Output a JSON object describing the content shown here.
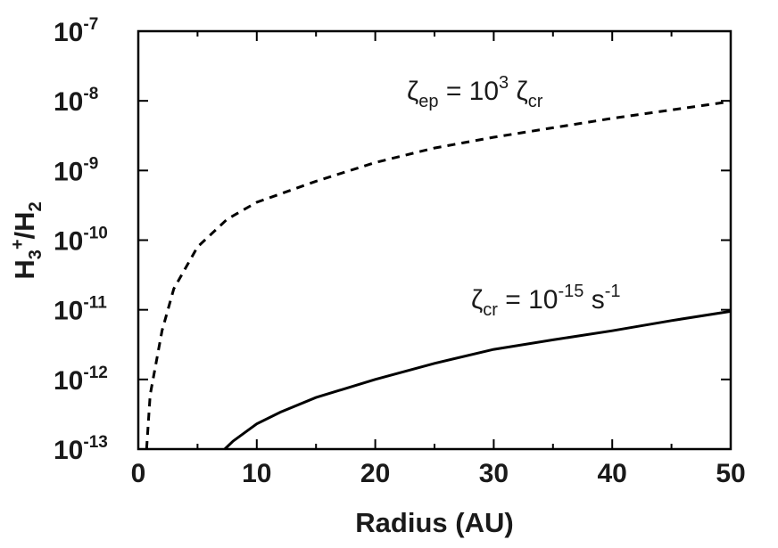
{
  "chart_data": {
    "type": "line",
    "xlabel": "Radius (AU)",
    "ylabel": {
      "base1": "H",
      "sub1": "3",
      "sup1": "+",
      "mid": "/H",
      "sub2": "2"
    },
    "xlim": [
      0,
      50
    ],
    "ylim_log10": [
      -13,
      -7
    ],
    "y_scale": "log",
    "x_ticks": [
      "0",
      "10",
      "20",
      "30",
      "40",
      "50"
    ],
    "y_ticks": [
      {
        "base": "10",
        "exp": "-13"
      },
      {
        "base": "10",
        "exp": "-12"
      },
      {
        "base": "10",
        "exp": "-11"
      },
      {
        "base": "10",
        "exp": "-10"
      },
      {
        "base": "10",
        "exp": "-9"
      },
      {
        "base": "10",
        "exp": "-8"
      },
      {
        "base": "10",
        "exp": "-7"
      }
    ],
    "series": [
      {
        "style": "dashed",
        "x": [
          0.7,
          1,
          2,
          3,
          5,
          7.5,
          10,
          15,
          20,
          25,
          30,
          35,
          40,
          45,
          50
        ],
        "y": [
          1e-13,
          6e-13,
          5e-12,
          2e-11,
          8e-11,
          2e-10,
          3.5e-10,
          7e-10,
          1.3e-09,
          2.1e-09,
          3e-09,
          4.1e-09,
          5.6e-09,
          7.4e-09,
          9.8e-09
        ]
      },
      {
        "style": "solid",
        "x": [
          7.3,
          8,
          10,
          12,
          15,
          20,
          25,
          30,
          35,
          40,
          45,
          50
        ],
        "y": [
          1e-13,
          1.3e-13,
          2.3e-13,
          3.4e-13,
          5.5e-13,
          1e-12,
          1.7e-12,
          2.7e-12,
          3.7e-12,
          5e-12,
          7e-12,
          9.5e-12
        ]
      }
    ],
    "annotations": [
      {
        "zeta": "ζ",
        "sub": "ep",
        "mid": " = 10",
        "sup": "3",
        "zeta2": " ζ",
        "sub2": "cr"
      },
      {
        "zeta": "ζ",
        "sub": "cr",
        "mid": " = 10",
        "sup": "-15",
        "tail": " s",
        "sup2": "-1"
      }
    ]
  }
}
